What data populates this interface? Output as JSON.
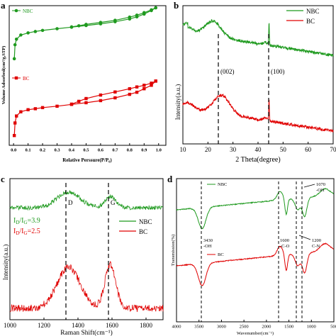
{
  "chart_data": [
    {
      "panel": "a",
      "type": "line",
      "xlabel": "Relative Perssure(P/P₀)",
      "ylabel": "Volume Adsorbed(cm³/g,STP)",
      "xlim": [
        -0.03,
        1.05
      ],
      "ylim": [
        0,
        100
      ],
      "x_ticks": [
        "0.0",
        "0.1",
        "0.2",
        "0.3",
        "0.4",
        "0.5",
        "0.6",
        "0.7",
        "0.8",
        "0.9",
        "1.0"
      ],
      "legend_placement": "top-left",
      "series": [
        {
          "name": "NBC",
          "color": "#1f9a1f",
          "marker": "circle",
          "adsorption": [
            [
              0.005,
              62
            ],
            [
              0.01,
              72
            ],
            [
              0.02,
              76
            ],
            [
              0.05,
              79
            ],
            [
              0.1,
              80.5
            ],
            [
              0.15,
              81.5
            ],
            [
              0.2,
              82.3
            ],
            [
              0.3,
              83.5
            ],
            [
              0.4,
              84.6
            ],
            [
              0.5,
              85.8
            ],
            [
              0.6,
              87
            ],
            [
              0.7,
              88.5
            ],
            [
              0.8,
              90.5
            ],
            [
              0.85,
              92
            ],
            [
              0.9,
              94
            ],
            [
              0.95,
              96.5
            ],
            [
              0.98,
              98.5
            ]
          ],
          "desorption": [
            [
              0.98,
              98.5
            ],
            [
              0.95,
              97
            ],
            [
              0.9,
              95
            ],
            [
              0.85,
              93.2
            ],
            [
              0.8,
              91.8
            ],
            [
              0.7,
              89.5
            ],
            [
              0.6,
              88
            ],
            [
              0.5,
              86.6
            ],
            [
              0.45,
              85.6
            ],
            [
              0.4,
              84.8
            ]
          ]
        },
        {
          "name": "BC",
          "color": "#e00000",
          "marker": "square",
          "adsorption": [
            [
              0.005,
              7
            ],
            [
              0.01,
              16
            ],
            [
              0.02,
              21
            ],
            [
              0.05,
              24
            ],
            [
              0.1,
              25.5
            ],
            [
              0.15,
              26.2
            ],
            [
              0.2,
              27
            ],
            [
              0.3,
              28
            ],
            [
              0.4,
              29.3
            ],
            [
              0.5,
              30.5
            ],
            [
              0.6,
              32
            ],
            [
              0.7,
              34
            ],
            [
              0.8,
              36.5
            ],
            [
              0.85,
              38
            ],
            [
              0.9,
              40.5
            ],
            [
              0.95,
              43
            ],
            [
              0.98,
              46
            ]
          ],
          "desorption": [
            [
              0.98,
              46
            ],
            [
              0.95,
              44.5
            ],
            [
              0.9,
              43
            ],
            [
              0.85,
              41.8
            ],
            [
              0.8,
              40.5
            ],
            [
              0.7,
              38.2
            ],
            [
              0.6,
              36
            ],
            [
              0.5,
              33.5
            ],
            [
              0.45,
              31.5
            ],
            [
              0.4,
              29.5
            ]
          ]
        }
      ]
    },
    {
      "panel": "b",
      "type": "line",
      "xlabel": "2 Theta(degree)",
      "ylabel": "Intensity(a.u.)",
      "xlim": [
        10,
        70
      ],
      "x_ticks": [
        10,
        20,
        30,
        40,
        50,
        60,
        70
      ],
      "legend_placement": "top-right",
      "annotations": [
        {
          "label": "(002)",
          "x": 24
        },
        {
          "label": "(100)",
          "x": 44.3
        }
      ],
      "series": [
        {
          "name": "NBC",
          "color": "#1f9a1f"
        },
        {
          "name": "BC",
          "color": "#e00000"
        }
      ]
    },
    {
      "panel": "c",
      "type": "line",
      "xlabel": "Raman Shift(cm⁻¹)",
      "ylabel": "Intensity(a.u.)",
      "xlim": [
        1000,
        1900
      ],
      "x_ticks": [
        1000,
        1200,
        1400,
        1600,
        1800
      ],
      "legend_placement": "middle-right",
      "annotations": [
        {
          "label": "D",
          "x": 1345
        },
        {
          "label": "G",
          "x": 1590
        }
      ],
      "ratio_text": [
        {
          "text": "I",
          "sub1": "D",
          "mid": "/I",
          "sub2": "G",
          "value": "=3.9",
          "color": "#1f9a1f"
        },
        {
          "text": "I",
          "sub1": "D",
          "mid": "/I",
          "sub2": "G",
          "value": "=2.5",
          "color": "#e00000"
        }
      ],
      "series": [
        {
          "name": "NBC",
          "color": "#1f9a1f"
        },
        {
          "name": "BC",
          "color": "#e00000"
        }
      ]
    },
    {
      "panel": "d",
      "type": "line",
      "xlabel": "Wavenumber(cm⁻¹)",
      "ylabel": "Transmission(%)",
      "xlim": [
        4000,
        500
      ],
      "x_ticks": [
        4000,
        3500,
        3000,
        2500,
        2000,
        1500,
        1000,
        500
      ],
      "annotations": [
        {
          "lines": [
            "3430",
            "-OH"
          ],
          "x": 3430
        },
        {
          "lines": [
            "1600",
            "-C-O"
          ],
          "x": 1600
        },
        {
          "lines": [
            "1200",
            "C-N"
          ],
          "x": 1200
        },
        {
          "lines": [
            "1070",
            "-OH"
          ],
          "x": 1070
        }
      ],
      "series": [
        {
          "name": "NBC",
          "color": "#1f9a1f"
        },
        {
          "name": "BC",
          "color": "#e00000"
        }
      ]
    }
  ],
  "panel_labels": [
    "a",
    "b",
    "c",
    "d"
  ],
  "colors": {
    "nbc": "#1f9a1f",
    "bc": "#e00000",
    "axis": "#000000"
  }
}
